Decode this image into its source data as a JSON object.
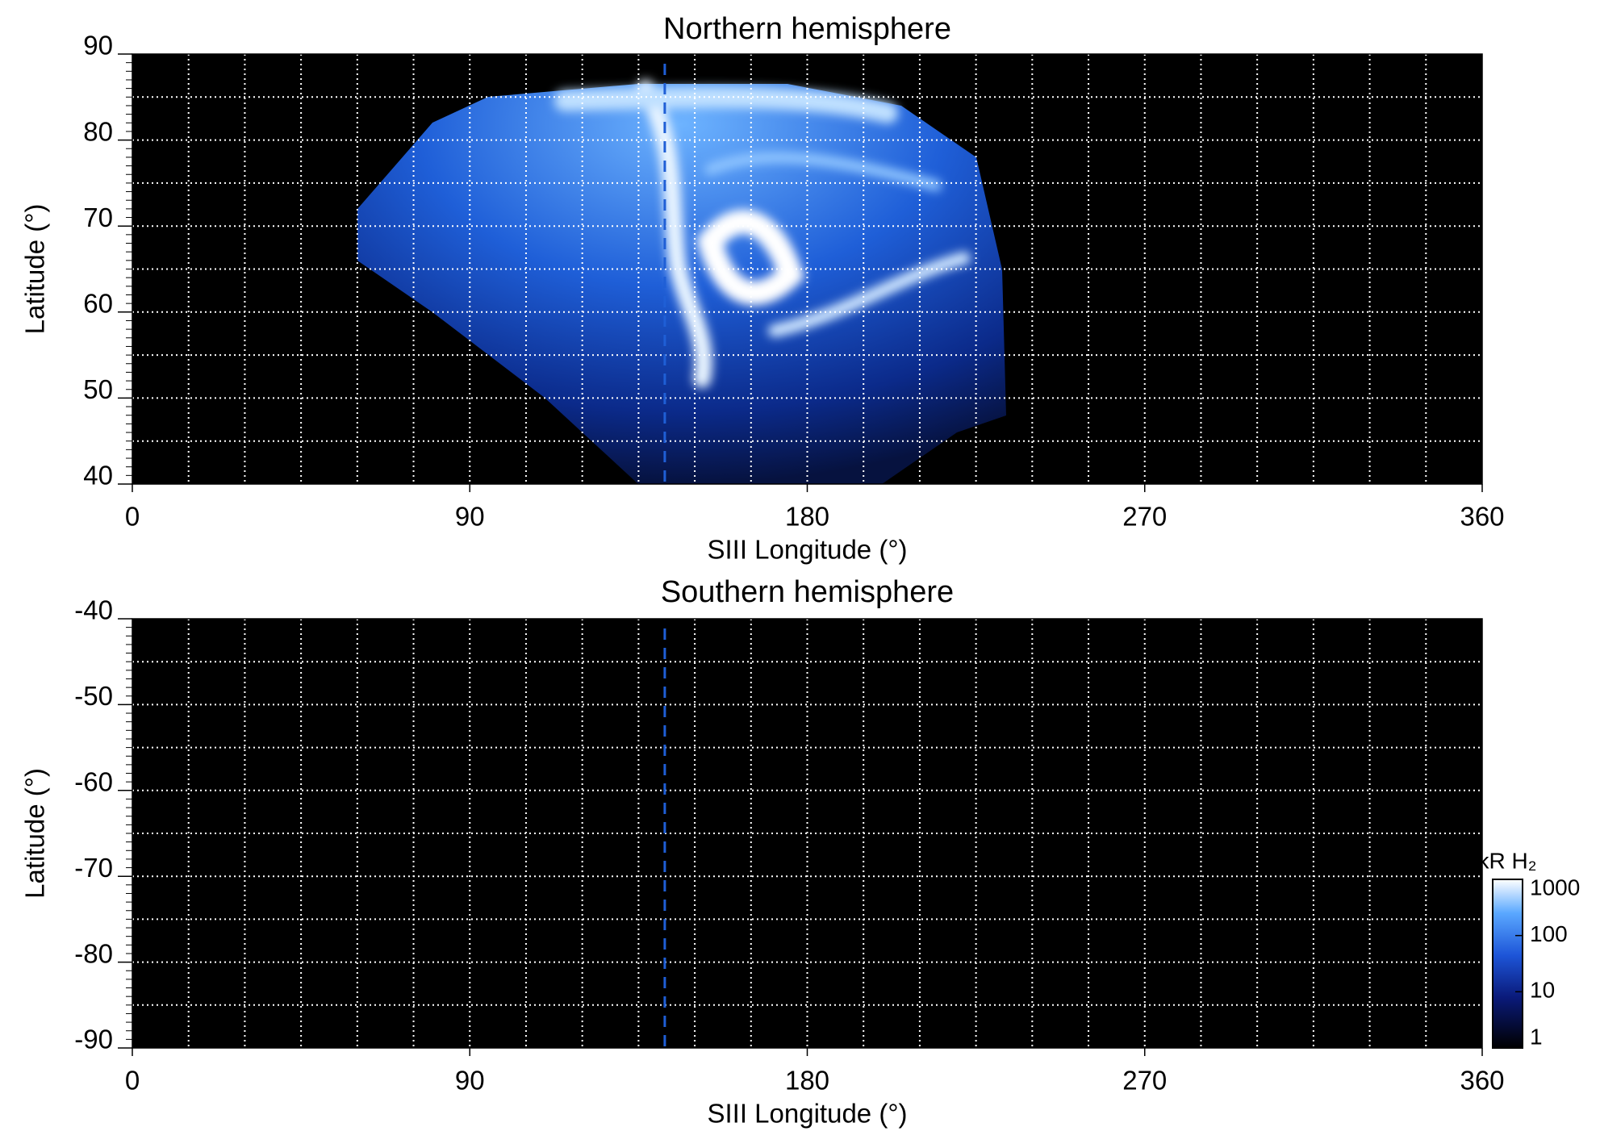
{
  "chart_data": [
    {
      "type": "heatmap",
      "title": "Northern hemisphere",
      "xlabel": "SIII Longitude (°)",
      "ylabel": "Latitude (°)",
      "xlim": [
        0,
        360
      ],
      "ylim": [
        40,
        90
      ],
      "xticks": [
        0,
        90,
        180,
        270,
        360
      ],
      "yticks": [
        40,
        50,
        60,
        70,
        80,
        90
      ],
      "xgrid": [
        15,
        30,
        45,
        60,
        75,
        90,
        105,
        120,
        135,
        150,
        165,
        180,
        195,
        210,
        225,
        240,
        255,
        270,
        285,
        300,
        315,
        330,
        345
      ],
      "ygrid": [
        45,
        50,
        55,
        60,
        65,
        70,
        75,
        80,
        85
      ],
      "yminor_step": 1,
      "reference_longitude": 142,
      "reference_color": "#1f5fd6"
    },
    {
      "type": "heatmap",
      "title": "Southern hemisphere",
      "xlabel": "SIII Longitude (°)",
      "ylabel": "Latitude (°)",
      "xlim": [
        0,
        360
      ],
      "ylim": [
        -90,
        -40
      ],
      "xticks": [
        0,
        90,
        180,
        270,
        360
      ],
      "yticks": [
        -40,
        -50,
        -60,
        -70,
        -80,
        -90
      ],
      "xgrid": [
        15,
        30,
        45,
        60,
        75,
        90,
        105,
        120,
        135,
        150,
        165,
        180,
        195,
        210,
        225,
        240,
        255,
        270,
        285,
        300,
        315,
        330,
        345
      ],
      "ygrid": [
        -45,
        -50,
        -55,
        -60,
        -65,
        -70,
        -75,
        -80,
        -85
      ],
      "yminor_step": 1,
      "reference_longitude": 142,
      "reference_color": "#1f5fd6"
    }
  ],
  "colorbar": {
    "label": "kR H₂",
    "scale": "log",
    "lim": [
      1,
      1000
    ],
    "ticks": [
      1,
      10,
      100,
      1000
    ]
  }
}
